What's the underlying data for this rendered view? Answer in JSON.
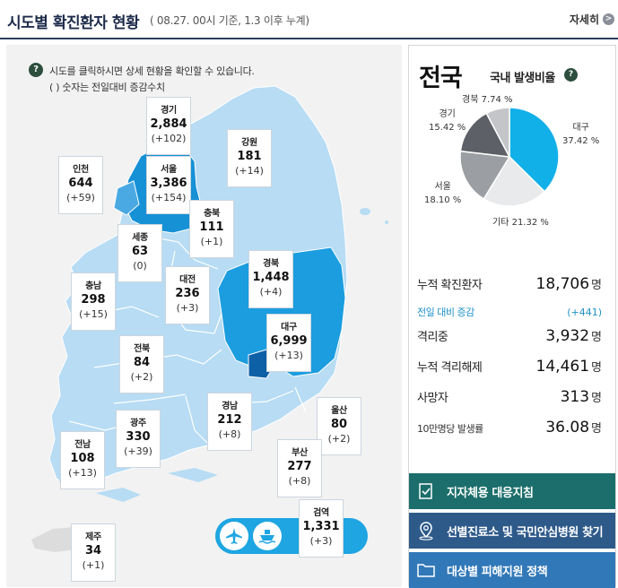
{
  "header": {
    "title": "시도별 확진환자 현황",
    "subtitle": "( 08.27. 00시 기준, 1.3 이후 누계)",
    "more_label": "자세히",
    "more_icon": "chevron-right-icon"
  },
  "notice": {
    "line1": "시도를 클릭하시면 상세 현황을 확인할 수 있습니다.",
    "line2": "( ) 숫자는 전일대비 증감수치"
  },
  "regions": [
    {
      "name": "경기",
      "count": "2,884",
      "diff": "(+102)"
    },
    {
      "name": "강원",
      "count": "181",
      "diff": "(+14)"
    },
    {
      "name": "인천",
      "count": "644",
      "diff": "(+59)"
    },
    {
      "name": "서울",
      "count": "3,386",
      "diff": "(+154)"
    },
    {
      "name": "충북",
      "count": "111",
      "diff": "(+1)"
    },
    {
      "name": "세종",
      "count": "63",
      "diff": "(0)"
    },
    {
      "name": "경북",
      "count": "1,448",
      "diff": "(+4)"
    },
    {
      "name": "충남",
      "count": "298",
      "diff": "(+15)"
    },
    {
      "name": "대전",
      "count": "236",
      "diff": "(+3)"
    },
    {
      "name": "대구",
      "count": "6,999",
      "diff": "(+13)"
    },
    {
      "name": "전북",
      "count": "84",
      "diff": "(+2)"
    },
    {
      "name": "경남",
      "count": "212",
      "diff": "(+8)"
    },
    {
      "name": "울산",
      "count": "80",
      "diff": "(+2)"
    },
    {
      "name": "광주",
      "count": "330",
      "diff": "(+39)"
    },
    {
      "name": "전남",
      "count": "108",
      "diff": "(+13)"
    },
    {
      "name": "부산",
      "count": "277",
      "diff": "(+8)"
    },
    {
      "name": "검역",
      "count": "1,331",
      "diff": "(+3)"
    },
    {
      "name": "제주",
      "count": "34",
      "diff": "(+1)"
    }
  ],
  "transport": {
    "air_icon": "airplane-icon",
    "sea_icon": "ship-icon"
  },
  "national": {
    "title": "전국",
    "ratio_title": "국내 발생비율",
    "ratio_help_icon": "question-icon"
  },
  "chart_data": {
    "type": "pie",
    "slices": [
      {
        "name": "대구",
        "value": 37.42,
        "label": "37.42 %",
        "color": "#12b0e8"
      },
      {
        "name": "기타",
        "value": 21.32,
        "label": "기타 21.32 %",
        "color": "#e9eaeb"
      },
      {
        "name": "서울",
        "value": 18.1,
        "label": "18.10 %",
        "color": "#9b9ea2"
      },
      {
        "name": "경기",
        "value": 15.42,
        "label": "15.42 %",
        "color": "#5d6066"
      },
      {
        "name": "경북",
        "value": 7.74,
        "label": "경북 7.74 %",
        "color": "#c3c5c8"
      }
    ]
  },
  "stats": {
    "confirmed_label": "누적 확진환자",
    "confirmed_value": "18,706",
    "unit": "명",
    "daily_label": "전일 대비 증감",
    "daily_value": "(+441)",
    "isolated_label": "격리중",
    "isolated_value": "3,932",
    "released_label": "누적 격리해제",
    "released_value": "14,461",
    "death_label": "사망자",
    "death_value": "313",
    "rate_label": "10만명당 발생률",
    "rate_value": "36.08"
  },
  "links": [
    {
      "label": "지자체용 대응지침",
      "icon": "document-check-icon",
      "color": "#1b6e6b"
    },
    {
      "label": "선별진료소 및 국민안심병원 찾기",
      "icon": "location-pin-icon",
      "color": "#2e5a8a"
    },
    {
      "label": "대상별 피해지원 정책",
      "icon": "folder-icon",
      "color": "#3178b8"
    }
  ]
}
